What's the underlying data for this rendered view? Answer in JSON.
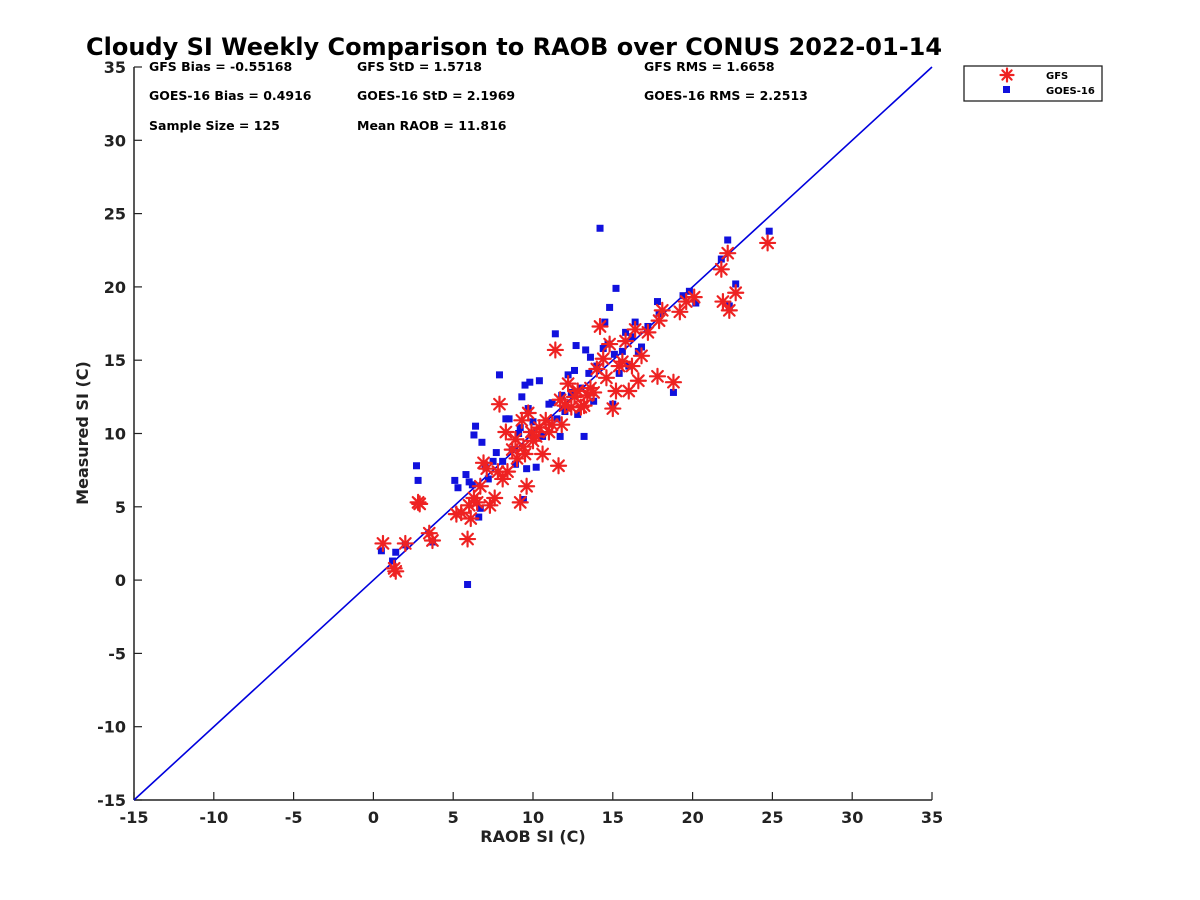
{
  "chart_data": {
    "type": "scatter",
    "title": "Cloudy SI Weekly Comparison to RAOB over CONUS 2022-01-14",
    "xlabel": "RAOB SI (C)",
    "ylabel": "Measured SI (C)",
    "xlim": [
      -15,
      35
    ],
    "ylim": [
      -15,
      35
    ],
    "xticks": [
      -15,
      -10,
      -5,
      0,
      5,
      10,
      15,
      20,
      25,
      30,
      35
    ],
    "yticks": [
      -15,
      -10,
      -5,
      0,
      5,
      10,
      15,
      20,
      25,
      30,
      35
    ],
    "grid": false,
    "legend_position": "top-right outside",
    "reference_line": {
      "x": [
        -15,
        35
      ],
      "y": [
        -15,
        35
      ],
      "color": "#0000dd"
    },
    "stats": [
      [
        "GFS Bias = -0.55168",
        "GFS StD = 1.5718",
        "GFS RMS = 1.6658"
      ],
      [
        "GOES-16 Bias = 0.4916",
        "GOES-16 StD = 2.1969",
        "GOES-16 RMS = 2.2513"
      ],
      [
        "Sample Size = 125",
        "Mean RAOB = 11.816"
      ]
    ],
    "series": [
      {
        "name": "GFS",
        "color": "#ee2222",
        "marker": "asterisk",
        "points": [
          [
            0.6,
            2.5
          ],
          [
            1.3,
            0.8
          ],
          [
            1.4,
            0.6
          ],
          [
            2,
            2.5
          ],
          [
            2.8,
            5.3
          ],
          [
            2.9,
            5.2
          ],
          [
            3.5,
            3.2
          ],
          [
            3.7,
            2.7
          ],
          [
            5.2,
            4.5
          ],
          [
            5.5,
            4.6
          ],
          [
            5.9,
            2.8
          ],
          [
            6,
            5.1
          ],
          [
            6.1,
            4.2
          ],
          [
            6.3,
            5.6
          ],
          [
            6.5,
            5.3
          ],
          [
            6.7,
            6.4
          ],
          [
            6.9,
            8
          ],
          [
            7.1,
            7.6
          ],
          [
            7.3,
            5.1
          ],
          [
            7.6,
            5.6
          ],
          [
            7.8,
            7.4
          ],
          [
            7.9,
            12
          ],
          [
            8.1,
            6.9
          ],
          [
            8.3,
            10.1
          ],
          [
            8.4,
            7.4
          ],
          [
            8.7,
            8.9
          ],
          [
            8.9,
            9.6
          ],
          [
            9,
            8.3
          ],
          [
            9.2,
            5.3
          ],
          [
            9.3,
            10.9
          ],
          [
            9.4,
            9.1
          ],
          [
            9.5,
            8.6
          ],
          [
            9.6,
            6.4
          ],
          [
            9.7,
            11.4
          ],
          [
            9.9,
            10.1
          ],
          [
            10,
            9.5
          ],
          [
            10.2,
            9.8
          ],
          [
            10.4,
            10.4
          ],
          [
            10.6,
            8.6
          ],
          [
            10.8,
            10.9
          ],
          [
            11,
            10.1
          ],
          [
            11.2,
            10.6
          ],
          [
            11.4,
            15.7
          ],
          [
            11.6,
            7.8
          ],
          [
            11.7,
            12.3
          ],
          [
            11.8,
            10.6
          ],
          [
            12,
            11.9
          ],
          [
            12.2,
            13.4
          ],
          [
            12.4,
            11.8
          ],
          [
            12.6,
            12.5
          ],
          [
            12.8,
            12.9
          ],
          [
            13,
            11.8
          ],
          [
            13.2,
            11.9
          ],
          [
            13.4,
            12.6
          ],
          [
            13.6,
            13.1
          ],
          [
            13.8,
            12.8
          ],
          [
            14,
            14.4
          ],
          [
            14.2,
            17.3
          ],
          [
            14.4,
            15.1
          ],
          [
            14.6,
            13.8
          ],
          [
            14.8,
            16.1
          ],
          [
            15,
            11.7
          ],
          [
            15.2,
            12.9
          ],
          [
            15.4,
            14.6
          ],
          [
            15.6,
            14.9
          ],
          [
            15.8,
            16.3
          ],
          [
            16,
            12.9
          ],
          [
            16.2,
            14.6
          ],
          [
            16.4,
            17.1
          ],
          [
            16.6,
            13.6
          ],
          [
            16.8,
            15.3
          ],
          [
            17.2,
            16.9
          ],
          [
            17.8,
            13.9
          ],
          [
            17.9,
            17.7
          ],
          [
            18.1,
            18.4
          ],
          [
            18.8,
            13.5
          ],
          [
            19.2,
            18.3
          ],
          [
            19.6,
            19
          ],
          [
            20.1,
            19.3
          ],
          [
            21.8,
            21.2
          ],
          [
            21.9,
            19
          ],
          [
            22.2,
            22.3
          ],
          [
            22.3,
            18.4
          ],
          [
            22.7,
            19.6
          ],
          [
            24.7,
            23
          ]
        ]
      },
      {
        "name": "GOES-16",
        "color": "#1111dd",
        "marker": "square",
        "points": [
          [
            0.5,
            2
          ],
          [
            1.2,
            1.3
          ],
          [
            1.4,
            1.9
          ],
          [
            2,
            2.4
          ],
          [
            2.7,
            7.8
          ],
          [
            2.8,
            6.8
          ],
          [
            3.7,
            2.6
          ],
          [
            5.1,
            6.8
          ],
          [
            5.3,
            6.3
          ],
          [
            5.8,
            7.2
          ],
          [
            5.9,
            -0.3
          ],
          [
            6,
            6.7
          ],
          [
            6.2,
            6.5
          ],
          [
            6.3,
            9.9
          ],
          [
            6.4,
            10.5
          ],
          [
            6.6,
            4.3
          ],
          [
            6.7,
            4.9
          ],
          [
            6.8,
            9.4
          ],
          [
            7,
            7.8
          ],
          [
            7.2,
            6.9
          ],
          [
            7.5,
            8.1
          ],
          [
            7.7,
            8.7
          ],
          [
            7.9,
            14
          ],
          [
            8.1,
            8.1
          ],
          [
            8.3,
            11
          ],
          [
            8.5,
            11
          ],
          [
            8.7,
            8.9
          ],
          [
            8.9,
            7.9
          ],
          [
            9.1,
            10
          ],
          [
            9.2,
            10.4
          ],
          [
            9.3,
            12.5
          ],
          [
            9.4,
            5.5
          ],
          [
            9.5,
            13.3
          ],
          [
            9.6,
            7.6
          ],
          [
            9.7,
            11.7
          ],
          [
            9.8,
            13.5
          ],
          [
            9.9,
            10
          ],
          [
            10,
            10.8
          ],
          [
            10.2,
            7.7
          ],
          [
            10.4,
            13.6
          ],
          [
            10.6,
            9.8
          ],
          [
            11,
            12
          ],
          [
            11.2,
            12.1
          ],
          [
            11.4,
            16.8
          ],
          [
            11.5,
            11
          ],
          [
            11.7,
            9.8
          ],
          [
            11.8,
            12.6
          ],
          [
            12,
            11.5
          ],
          [
            12.2,
            14
          ],
          [
            12.4,
            12.8
          ],
          [
            12.6,
            14.3
          ],
          [
            12.7,
            16
          ],
          [
            12.8,
            11.3
          ],
          [
            13,
            13.1
          ],
          [
            13.2,
            9.8
          ],
          [
            13.3,
            15.7
          ],
          [
            13.5,
            14.1
          ],
          [
            13.6,
            15.2
          ],
          [
            13.8,
            12.2
          ],
          [
            14,
            14.6
          ],
          [
            14.2,
            24
          ],
          [
            14.4,
            15.8
          ],
          [
            14.5,
            17.6
          ],
          [
            14.7,
            16.1
          ],
          [
            14.8,
            18.6
          ],
          [
            15,
            12
          ],
          [
            15.1,
            15.4
          ],
          [
            15.2,
            19.9
          ],
          [
            15.4,
            14.1
          ],
          [
            15.6,
            15.6
          ],
          [
            15.8,
            16.9
          ],
          [
            16,
            14.6
          ],
          [
            16.2,
            16.6
          ],
          [
            16.4,
            17.6
          ],
          [
            16.6,
            15.6
          ],
          [
            16.8,
            15.9
          ],
          [
            17.2,
            17.3
          ],
          [
            17.8,
            19
          ],
          [
            17.9,
            18.2
          ],
          [
            18.8,
            12.8
          ],
          [
            19.4,
            19.4
          ],
          [
            19.8,
            19.7
          ],
          [
            20.2,
            18.9
          ],
          [
            21.8,
            21.9
          ],
          [
            22.2,
            23.2
          ],
          [
            22.3,
            18.7
          ],
          [
            22.7,
            20.2
          ],
          [
            24.8,
            23.8
          ]
        ]
      }
    ]
  }
}
